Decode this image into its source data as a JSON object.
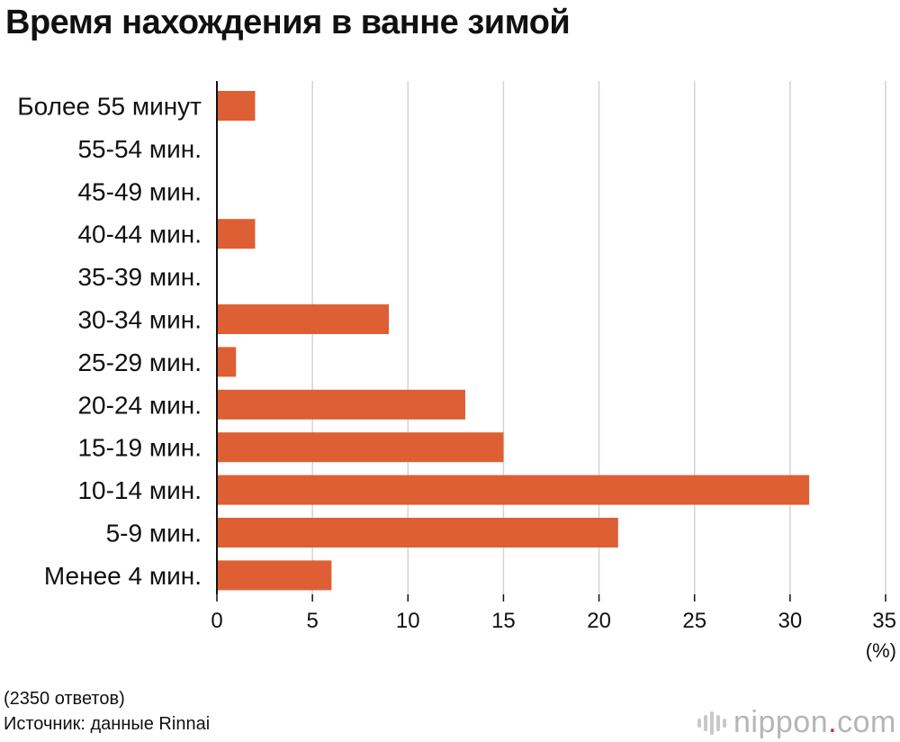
{
  "title": "Время нахождения в ванне зимой",
  "chart_data": {
    "type": "bar",
    "orientation": "horizontal",
    "title": "Время нахождения в ванне зимой",
    "categories": [
      "Более 55 минут",
      "55-54 мин.",
      "45-49 мин.",
      "40-44 мин.",
      "35-39 мин.",
      "30-34 мин.",
      "25-29 мин.",
      "20-24 мин.",
      "15-19 мин.",
      "10-14 мин.",
      "5-9 мин.",
      "Менее 4 мин."
    ],
    "values": [
      2,
      0,
      0,
      2,
      0,
      9,
      1,
      13,
      15,
      31,
      21,
      6
    ],
    "xlim": [
      0,
      35
    ],
    "xticks": [
      "0",
      "5",
      "10",
      "15",
      "20",
      "25",
      "30",
      "35"
    ],
    "xunit": "(%)",
    "grid": true,
    "bar_color": "#de5f33",
    "grid_color": "#d3d3d3"
  },
  "footer": {
    "note": "(2350 ответов)",
    "source": "Источник: данные Rinnai"
  },
  "logo": {
    "name": "nippon",
    "dot": ".",
    "suffix": "com",
    "accent": "#d7262b"
  }
}
